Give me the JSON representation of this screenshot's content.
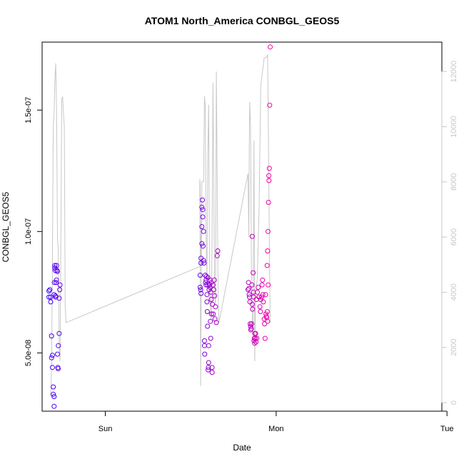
{
  "chart_data": {
    "type": "scatter",
    "title": "ATOM1 North_America CONBGL_GEOS5",
    "xlabel": "Date",
    "ylabel": "CONBGL_GEOS5",
    "x_ticks": [
      "Sun",
      "Mon",
      "Tue"
    ],
    "y_ticks": [
      "5.0e-08",
      "1.0e-07",
      "1.5e-07"
    ],
    "y_tick_values": [
      5e-08,
      1e-07,
      1.5e-07
    ],
    "y2_ticks": [
      "0",
      "2000",
      "4000",
      "6000",
      "8000",
      "10000",
      "12000"
    ],
    "x_unit": "days since start of Sun",
    "xlim": [
      -0.37,
      1.97
    ],
    "ylim": [
      2.6e-08,
      1.78e-07
    ],
    "y2lim": [
      0,
      12600
    ],
    "grid": false,
    "colors": {
      "line": "#c8c8c8",
      "axis": "#000000",
      "axis2": "#c8c8c8",
      "point_start": "#3a00ff",
      "point_end": "#ff00a0"
    },
    "series": [
      {
        "kind": "line",
        "axis": "right",
        "points": [
          [
            -0.32,
            200
          ],
          [
            -0.315,
            1200
          ],
          [
            -0.31,
            5000
          ],
          [
            -0.305,
            10000
          ],
          [
            -0.3,
            10500
          ],
          [
            -0.295,
            11700
          ],
          [
            -0.29,
            12300
          ],
          [
            -0.285,
            10500
          ],
          [
            -0.28,
            6000
          ],
          [
            -0.275,
            5500
          ],
          [
            -0.27,
            2000
          ],
          [
            -0.265,
            1500
          ],
          [
            -0.26,
            6000
          ],
          [
            -0.255,
            11000
          ],
          [
            -0.25,
            11100
          ],
          [
            -0.245,
            10500
          ],
          [
            -0.24,
            10000
          ],
          [
            -0.235,
            3500
          ],
          [
            -0.23,
            2900
          ],
          [
            0.56,
            4950
          ],
          [
            0.555,
            7900
          ],
          [
            0.553,
            8100
          ],
          [
            0.556,
            4500
          ],
          [
            0.558,
            600
          ],
          [
            0.562,
            4500
          ],
          [
            0.565,
            8000
          ],
          [
            0.575,
            8000
          ],
          [
            0.58,
            11100
          ],
          [
            0.585,
            10800
          ],
          [
            0.59,
            6000
          ],
          [
            0.595,
            4500
          ],
          [
            0.6,
            9000
          ],
          [
            0.605,
            10800
          ],
          [
            0.61,
            5000
          ],
          [
            0.615,
            3500
          ],
          [
            0.62,
            3000
          ],
          [
            0.625,
            6000
          ],
          [
            0.63,
            11600
          ],
          [
            0.635,
            8000
          ],
          [
            0.64,
            4000
          ],
          [
            0.645,
            3500
          ],
          [
            0.65,
            12000
          ],
          [
            0.66,
            4000
          ],
          [
            0.665,
            2900
          ],
          [
            0.835,
            8300
          ],
          [
            0.84,
            6000
          ],
          [
            0.842,
            9000
          ],
          [
            0.845,
            10900
          ],
          [
            0.85,
            10000
          ],
          [
            0.855,
            5000
          ],
          [
            0.86,
            3000
          ],
          [
            0.865,
            2800
          ],
          [
            0.87,
            9500
          ],
          [
            0.875,
            1500
          ],
          [
            0.88,
            4000
          ],
          [
            0.89,
            4500
          ],
          [
            0.9,
            7000
          ],
          [
            0.91,
            11500
          ],
          [
            0.92,
            12000
          ],
          [
            0.93,
            12500
          ],
          [
            0.94,
            12500
          ],
          [
            0.95,
            12600
          ],
          [
            0.955,
            9500
          ],
          [
            0.96,
            6000
          ],
          [
            0.965,
            2900
          ]
        ]
      },
      {
        "kind": "points",
        "axis": "left",
        "points": [
          [
            -0.33,
            7.3e-08
          ],
          [
            -0.33,
            7.55e-08
          ],
          [
            -0.325,
            7.6e-08
          ],
          [
            -0.32,
            7.1e-08
          ],
          [
            -0.32,
            7.3e-08
          ],
          [
            -0.315,
            5.7e-08
          ],
          [
            -0.315,
            4.8e-08
          ],
          [
            -0.31,
            4.9e-08
          ],
          [
            -0.31,
            4.4e-08
          ],
          [
            -0.305,
            3.3e-08
          ],
          [
            -0.305,
            3.6e-08
          ],
          [
            -0.3,
            3.2e-08
          ],
          [
            -0.3,
            2.8e-08
          ],
          [
            -0.3,
            7.4e-08
          ],
          [
            -0.298,
            7.9e-08
          ],
          [
            -0.296,
            8.5e-08
          ],
          [
            -0.295,
            8.6e-08
          ],
          [
            -0.294,
            8.4e-08
          ],
          [
            -0.292,
            7.35e-08
          ],
          [
            -0.29,
            7.3e-08
          ],
          [
            -0.288,
            7.9e-08
          ],
          [
            -0.286,
            8e-08
          ],
          [
            -0.285,
            8.6e-08
          ],
          [
            -0.283,
            8.4e-08
          ],
          [
            -0.281,
            8.35e-08
          ],
          [
            -0.28,
            4.95e-08
          ],
          [
            -0.278,
            4.4e-08
          ],
          [
            -0.276,
            4.35e-08
          ],
          [
            -0.275,
            5.3e-08
          ],
          [
            -0.27,
            5.8e-08
          ],
          [
            -0.27,
            7.25e-08
          ],
          [
            -0.267,
            7.6e-08
          ],
          [
            -0.265,
            7.8e-08
          ],
          [
            0.555,
            7.7e-08
          ],
          [
            0.555,
            8.2e-08
          ],
          [
            0.558,
            7.6e-08
          ],
          [
            0.56,
            7.45e-08
          ],
          [
            0.56,
            8.7e-08
          ],
          [
            0.56,
            8.9e-08
          ],
          [
            0.565,
            9.5e-08
          ],
          [
            0.565,
            1.02e-07
          ],
          [
            0.565,
            1.1e-07
          ],
          [
            0.568,
            1.13e-07
          ],
          [
            0.57,
            1.09e-07
          ],
          [
            0.57,
            1.06e-07
          ],
          [
            0.572,
            9.4e-08
          ],
          [
            0.575,
            8.8e-08
          ],
          [
            0.575,
            1e-07
          ],
          [
            0.578,
            8.7e-08
          ],
          [
            0.58,
            5.5e-08
          ],
          [
            0.58,
            5.3e-08
          ],
          [
            0.582,
            4.95e-08
          ],
          [
            0.585,
            8.2e-08
          ],
          [
            0.587,
            7.9e-08
          ],
          [
            0.59,
            8e-08
          ],
          [
            0.59,
            7.8e-08
          ],
          [
            0.592,
            8.15e-08
          ],
          [
            0.595,
            7.4e-08
          ],
          [
            0.595,
            7.1e-08
          ],
          [
            0.597,
            6.7e-08
          ],
          [
            0.598,
            6.1e-08
          ],
          [
            0.6,
            7.8e-08
          ],
          [
            0.6,
            8.1e-08
          ],
          [
            0.602,
            4.3e-08
          ],
          [
            0.603,
            4.4e-08
          ],
          [
            0.605,
            4.6e-08
          ],
          [
            0.605,
            5.3e-08
          ],
          [
            0.607,
            7.6e-08
          ],
          [
            0.61,
            7.8e-08
          ],
          [
            0.612,
            7.7e-08
          ],
          [
            0.613,
            8e-08
          ],
          [
            0.615,
            6.3e-08
          ],
          [
            0.617,
            5.6e-08
          ],
          [
            0.618,
            7.5e-08
          ],
          [
            0.62,
            7.9e-08
          ],
          [
            0.62,
            7.2e-08
          ],
          [
            0.622,
            6.6e-08
          ],
          [
            0.625,
            4.4e-08
          ],
          [
            0.625,
            4.2e-08
          ],
          [
            0.627,
            7e-08
          ],
          [
            0.63,
            7.8e-08
          ],
          [
            0.632,
            6.6e-08
          ],
          [
            0.635,
            7.6e-08
          ],
          [
            0.638,
            8e-08
          ],
          [
            0.64,
            7.35e-08
          ],
          [
            0.642,
            6.4e-08
          ],
          [
            0.645,
            6.9e-08
          ],
          [
            0.65,
            6.25e-08
          ],
          [
            0.655,
            9e-08
          ],
          [
            0.658,
            9.2e-08
          ],
          [
            0.835,
            7.6e-08
          ],
          [
            0.838,
            7.9e-08
          ],
          [
            0.84,
            7.65e-08
          ],
          [
            0.842,
            7.4e-08
          ],
          [
            0.844,
            7.3e-08
          ],
          [
            0.846,
            7.1e-08
          ],
          [
            0.848,
            6.2e-08
          ],
          [
            0.85,
            6.1e-08
          ],
          [
            0.852,
            5.95e-08
          ],
          [
            0.855,
            6e-08
          ],
          [
            0.857,
            6.2e-08
          ],
          [
            0.858,
            7.8e-08
          ],
          [
            0.86,
            9.8e-08
          ],
          [
            0.86,
            7e-08
          ],
          [
            0.862,
            6.8e-08
          ],
          [
            0.865,
            8.3e-08
          ],
          [
            0.867,
            7.5e-08
          ],
          [
            0.868,
            7.3e-08
          ],
          [
            0.87,
            5.5e-08
          ],
          [
            0.872,
            5.6e-08
          ],
          [
            0.874,
            5.4e-08
          ],
          [
            0.875,
            5.8e-08
          ],
          [
            0.878,
            5.6e-08
          ],
          [
            0.88,
            5.8e-08
          ],
          [
            0.882,
            5.45e-08
          ],
          [
            0.885,
            7.2e-08
          ],
          [
            0.887,
            5.6e-08
          ],
          [
            0.89,
            7.5e-08
          ],
          [
            0.895,
            7.7e-08
          ],
          [
            0.9,
            7.3e-08
          ],
          [
            0.905,
            6.9e-08
          ],
          [
            0.908,
            6.7e-08
          ],
          [
            0.91,
            7.2e-08
          ],
          [
            0.915,
            7.3e-08
          ],
          [
            0.918,
            7.8e-08
          ],
          [
            0.92,
            8e-08
          ],
          [
            0.922,
            7.4e-08
          ],
          [
            0.925,
            7.1e-08
          ],
          [
            0.93,
            6.4e-08
          ],
          [
            0.932,
            6.2e-08
          ],
          [
            0.935,
            5.6e-08
          ],
          [
            0.938,
            7.4e-08
          ],
          [
            0.94,
            6.6e-08
          ],
          [
            0.942,
            6.5e-08
          ],
          [
            0.945,
            6.45e-08
          ],
          [
            0.947,
            8.6e-08
          ],
          [
            0.95,
            9.2e-08
          ],
          [
            0.952,
            1e-07
          ],
          [
            0.955,
            1.12e-07
          ],
          [
            0.957,
            1.23e-07
          ],
          [
            0.958,
            1.21e-07
          ],
          [
            0.96,
            1.26e-07
          ],
          [
            0.962,
            1.52e-07
          ],
          [
            0.965,
            1.76e-07
          ],
          [
            0.948,
            6.7e-08
          ],
          [
            0.95,
            6.3e-08
          ],
          [
            0.953,
            7.8e-08
          ]
        ]
      }
    ]
  }
}
